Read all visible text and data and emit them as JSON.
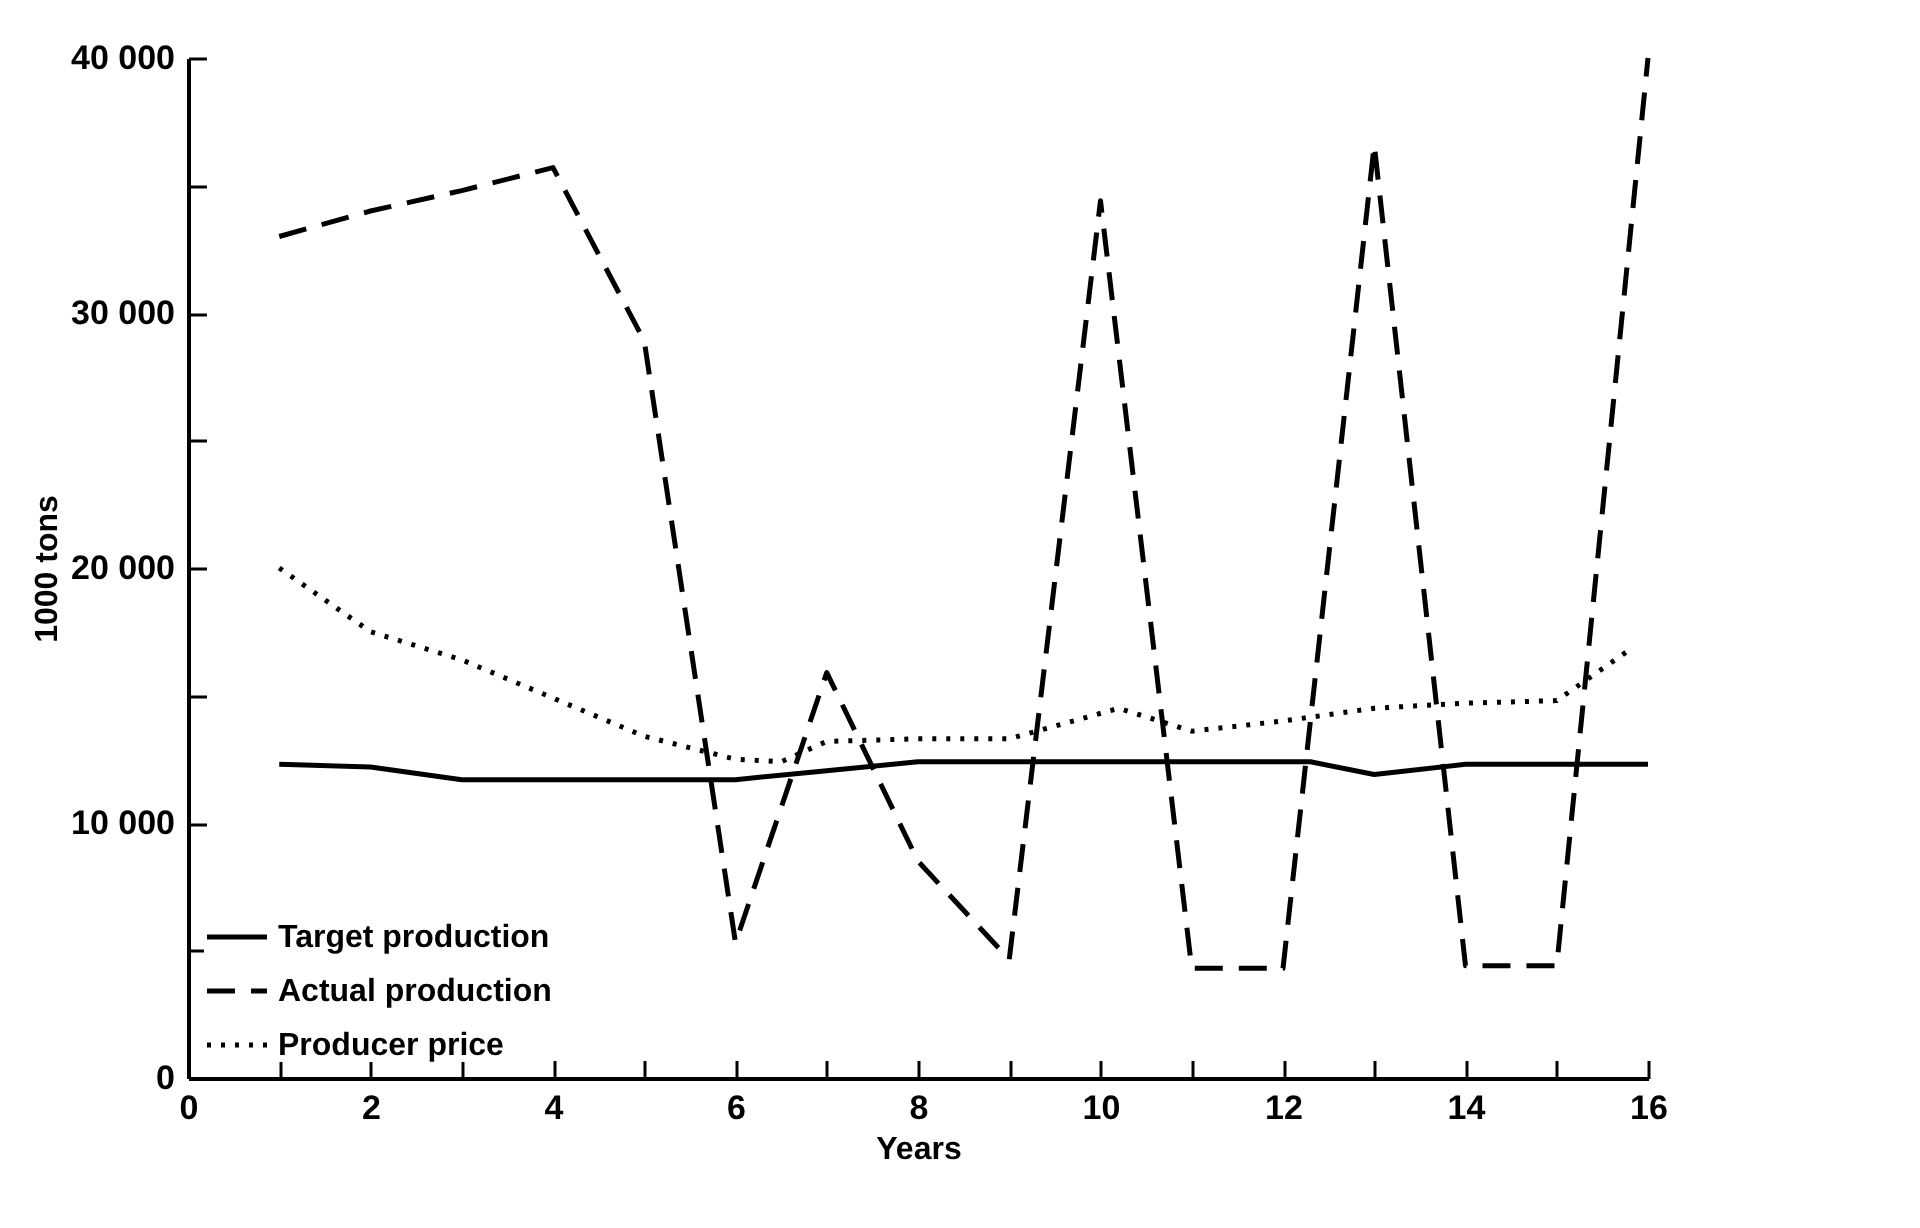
{
  "chart_data": {
    "type": "line",
    "xlabel": "Years",
    "ylabel": "1000 tons",
    "x": [
      1,
      2,
      3,
      4,
      5,
      6,
      7,
      8,
      9,
      10,
      11,
      12,
      13,
      14,
      15,
      16
    ],
    "series": [
      {
        "name": "Target production",
        "color": "#000000",
        "line_style": "solid",
        "x": [
          1,
          2,
          3,
          4,
          5,
          6,
          7,
          8,
          9,
          10,
          11,
          12,
          12.3,
          13,
          14,
          15,
          16
        ],
        "values": [
          12300,
          12200,
          11700,
          11700,
          11700,
          11700,
          12050,
          12400,
          12400,
          12400,
          12400,
          12400,
          12400,
          11900,
          12300,
          12300,
          12300
        ]
      },
      {
        "name": "Actual production",
        "color": "#000000",
        "line_style": "dashed",
        "values": [
          33000,
          34000,
          34800,
          35700,
          28900,
          5300,
          15900,
          8500,
          4650,
          34400,
          4300,
          4300,
          36600,
          4400,
          4400,
          40000
        ]
      },
      {
        "name": "Producer price",
        "color": "#000000",
        "line_style": "dotted",
        "x": [
          1,
          2,
          3,
          4,
          5,
          6,
          6.5,
          7,
          8,
          9,
          10.2,
          11,
          12,
          13,
          14,
          15,
          15.8
        ],
        "values": [
          20000,
          17500,
          16400,
          14900,
          13400,
          12500,
          12400,
          13200,
          13300,
          13300,
          14500,
          13600,
          14000,
          14500,
          14700,
          14800,
          16800
        ]
      }
    ],
    "xlim": [
      0,
      16
    ],
    "xticks": [
      0,
      {
        "value": 1,
        "label": null
      },
      2,
      {
        "value": 3,
        "label": null
      },
      4,
      {
        "value": 5,
        "label": null
      },
      6,
      {
        "value": 7,
        "label": null
      },
      8,
      {
        "value": 9,
        "label": null
      },
      10,
      {
        "value": 11,
        "label": null
      },
      12,
      {
        "value": 13,
        "label": null
      },
      14,
      {
        "value": 15,
        "label": null
      },
      16
    ],
    "ylim": [
      0,
      40000
    ],
    "yticks": [
      {
        "value": 0,
        "label": "0"
      },
      {
        "value": 5000,
        "label": null
      },
      {
        "value": 10000,
        "label": "10 000"
      },
      {
        "value": 15000,
        "label": null
      },
      {
        "value": 20000,
        "label": "20 000"
      },
      {
        "value": 25000,
        "label": null
      },
      {
        "value": 30000,
        "label": "30 000"
      },
      {
        "value": 35000,
        "label": null
      },
      {
        "value": 40000,
        "label": "40 000"
      }
    ],
    "grid": false,
    "legend": "bottom left"
  }
}
